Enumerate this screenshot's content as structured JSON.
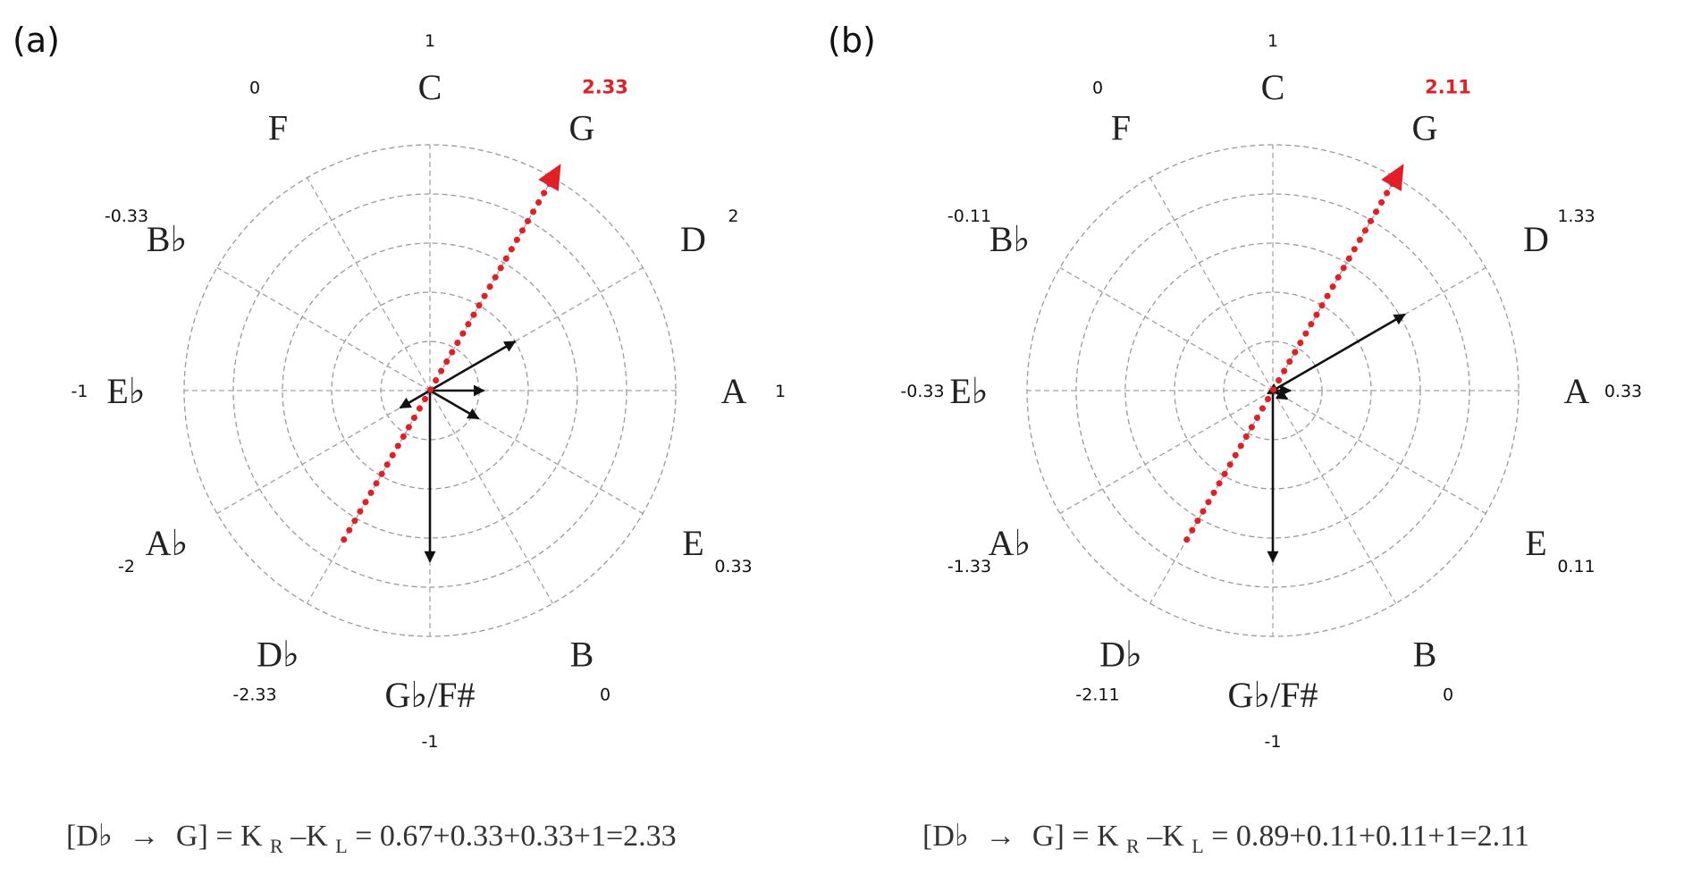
{
  "colors": {
    "result": "#e31e24",
    "vector": "#111111"
  },
  "arrow_symbol": "→",
  "panels": [
    {
      "label": "(a)",
      "notes": [
        "C",
        "G",
        "D",
        "A",
        "E",
        "B",
        "Gb/F#",
        "Db",
        "Ab",
        "Eb",
        "Bb",
        "F"
      ],
      "note_values": [
        "1",
        "2.33",
        "2",
        "1",
        "0.33",
        "0",
        "-1",
        "-2.33",
        "-2",
        "-1",
        "-0.33",
        "0"
      ],
      "result_value": "2.33",
      "result_axis": {
        "from": "Db",
        "to": "G",
        "magnitude": 2.33
      },
      "vectors": [
        {
          "direction": "D",
          "magnitude": 1.0
        },
        {
          "direction": "A",
          "magnitude": 0.55
        },
        {
          "direction": "E",
          "magnitude": 0.57
        },
        {
          "direction": "Gb/F#",
          "magnitude": 1.74
        },
        {
          "direction": "Ab",
          "magnitude": 0.35
        }
      ],
      "formula": {
        "bracket_open": "[Db",
        "bracket_close": "G]",
        "middle": " = K",
        "sub_r": "R",
        "minus": "–K",
        "sub_l": "L",
        "rhs": "= 0.67+0.33+0.33+1=2.33"
      }
    },
    {
      "label": "(b)",
      "notes": [
        "C",
        "G",
        "D",
        "A",
        "E",
        "B",
        "Gb/F#",
        "Db",
        "Ab",
        "Eb",
        "Bb",
        "F"
      ],
      "note_values": [
        "1",
        "2.11",
        "1.33",
        "0.33",
        "0.11",
        "0",
        "-1",
        "-2.11",
        "-1.33",
        "-0.33",
        "-0.11",
        "0"
      ],
      "result_value": "2.11",
      "result_axis": {
        "from": "Db",
        "to": "G",
        "magnitude": 2.11
      },
      "vectors": [
        {
          "direction": "D",
          "magnitude": 1.55
        },
        {
          "direction": "A",
          "magnitude": 0.18
        },
        {
          "direction": "E",
          "magnitude": 0.17
        },
        {
          "direction": "Gb/F#",
          "magnitude": 1.74
        },
        {
          "direction": "Ab",
          "magnitude": 0.06
        }
      ],
      "formula": {
        "bracket_open": "[Db",
        "bracket_close": "G]",
        "middle": " = K",
        "sub_r": "R",
        "minus": "–K",
        "sub_l": "L",
        "rhs": "= 0.89+0.11+0.11+1=2.11"
      }
    }
  ]
}
